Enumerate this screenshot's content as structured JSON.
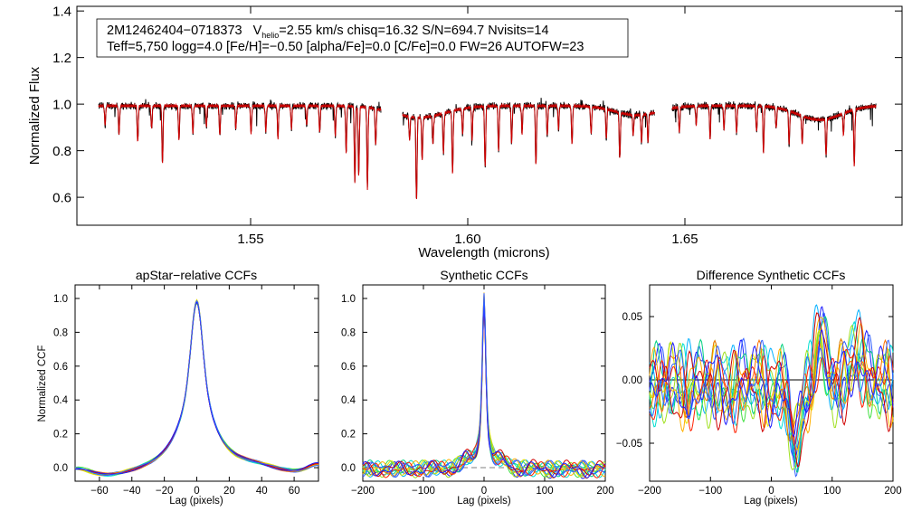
{
  "colors": {
    "observed": "#000000",
    "model": "#d00000",
    "zero_line": "#7f7f7f",
    "visit_palette": [
      "#1a1aff",
      "#3060ff",
      "#00b0ff",
      "#00e0d0",
      "#00d080",
      "#40e040",
      "#a0e020",
      "#e8e000",
      "#ffb000",
      "#ff7000",
      "#ff2000",
      "#d00000"
    ]
  },
  "chart_data": [
    {
      "type": "line",
      "id": "spectrum",
      "title": "",
      "info_line1": {
        "star": "2M12462404−0718373",
        "v_label": "V",
        "v_sub": "helio",
        "v_value": "=2.55 km/s  chisq=16.32  S/N=694.7  Nvisits=14"
      },
      "info_line2": "Teff=5,750 logg=4.0 [Fe/H]=−0.50 [alpha/Fe]=0.0 [C/Fe]=0.0 FW=26 AUTOFW=23",
      "xlabel": "Wavelength (microns)",
      "ylabel": "Normalized Flux",
      "xlim": [
        1.51,
        1.7
      ],
      "ylim": [
        0.48,
        1.42
      ],
      "xticks": [
        "1.55",
        "1.60",
        "1.65"
      ],
      "xtick_values": [
        1.55,
        1.6,
        1.65
      ],
      "yticks": [
        "0.6",
        "0.8",
        "1.0",
        "1.2",
        "1.4"
      ],
      "ytick_values": [
        0.6,
        0.8,
        1.0,
        1.2,
        1.4
      ],
      "segments": [
        [
          1.515,
          1.58
        ],
        [
          1.585,
          1.643
        ],
        [
          1.647,
          1.694
        ]
      ],
      "series": [
        {
          "name": "observed",
          "color": "#000000"
        },
        {
          "name": "model",
          "color": "#d00000"
        }
      ],
      "absorption_lines": [
        [
          1.5165,
          0.08
        ],
        [
          1.5197,
          0.12
        ],
        [
          1.524,
          0.16
        ],
        [
          1.5272,
          0.1
        ],
        [
          1.5297,
          0.25
        ],
        [
          1.5335,
          0.15
        ],
        [
          1.5367,
          0.12
        ],
        [
          1.5398,
          0.09
        ],
        [
          1.5429,
          0.13
        ],
        [
          1.5466,
          0.1
        ],
        [
          1.5501,
          0.12
        ],
        [
          1.5535,
          0.11
        ],
        [
          1.5563,
          0.14
        ],
        [
          1.5594,
          0.1
        ],
        [
          1.5629,
          0.08
        ],
        [
          1.5659,
          0.12
        ],
        [
          1.5695,
          0.13
        ],
        [
          1.572,
          0.2
        ],
        [
          1.574,
          0.33
        ],
        [
          1.5749,
          0.3
        ],
        [
          1.5769,
          0.35
        ],
        [
          1.5788,
          0.16
        ],
        [
          1.5866,
          0.1
        ],
        [
          1.5882,
          0.36
        ],
        [
          1.5895,
          0.18
        ],
        [
          1.592,
          0.12
        ],
        [
          1.5944,
          0.17
        ],
        [
          1.5965,
          0.27
        ],
        [
          1.5988,
          0.11
        ],
        [
          1.601,
          0.14
        ],
        [
          1.604,
          0.26
        ],
        [
          1.6071,
          0.2
        ],
        [
          1.6101,
          0.16
        ],
        [
          1.6125,
          0.12
        ],
        [
          1.6157,
          0.25
        ],
        [
          1.6183,
          0.13
        ],
        [
          1.6209,
          0.1
        ],
        [
          1.624,
          0.16
        ],
        [
          1.6284,
          0.12
        ],
        [
          1.6319,
          0.13
        ],
        [
          1.635,
          0.2
        ],
        [
          1.6381,
          0.09
        ],
        [
          1.64,
          0.12
        ],
        [
          1.6415,
          0.12
        ],
        [
          1.6487,
          0.11
        ],
        [
          1.6526,
          0.08
        ],
        [
          1.6558,
          0.14
        ],
        [
          1.659,
          0.1
        ],
        [
          1.6619,
          0.12
        ],
        [
          1.6665,
          0.11
        ],
        [
          1.6681,
          0.2
        ],
        [
          1.671,
          0.09
        ],
        [
          1.674,
          0.14
        ],
        [
          1.677,
          0.12
        ],
        [
          1.6825,
          0.16
        ],
        [
          1.6865,
          0.09
        ],
        [
          1.689,
          0.24
        ]
      ],
      "broad_features": [
        [
          1.5888,
          0.05,
          0.006
        ],
        [
          1.639,
          0.04,
          0.005
        ],
        [
          1.681,
          0.06,
          0.005
        ]
      ]
    },
    {
      "type": "line",
      "id": "apstar_ccf",
      "title": "apStar−relative CCFs",
      "xlabel": "Lag (pixels)",
      "ylabel": "Normalized CCF",
      "xlim": [
        -75,
        75
      ],
      "ylim": [
        -0.08,
        1.08
      ],
      "xticks": [
        "−60",
        "−40",
        "−20",
        "0",
        "20",
        "40",
        "60"
      ],
      "xtick_values": [
        -60,
        -40,
        -20,
        0,
        20,
        40,
        60
      ],
      "yticks": [
        "0.0",
        "0.2",
        "0.4",
        "0.6",
        "0.8",
        "1.0"
      ],
      "ytick_values": [
        0.0,
        0.2,
        0.4,
        0.6,
        0.8,
        1.0
      ],
      "n_series": 14,
      "zero_line": false
    },
    {
      "type": "line",
      "id": "synthetic_ccf",
      "title": "Synthetic CCFs",
      "xlabel": "Lag (pixels)",
      "ylabel": "",
      "xlim": [
        -200,
        200
      ],
      "ylim": [
        -0.08,
        1.08
      ],
      "xticks": [
        "−200",
        "−100",
        "0",
        "100",
        "200"
      ],
      "xtick_values": [
        -200,
        -100,
        0,
        100,
        200
      ],
      "yticks": [
        "0.0",
        "0.2",
        "0.4",
        "0.6",
        "0.8",
        "1.0"
      ],
      "ytick_values": [
        0.0,
        0.2,
        0.4,
        0.6,
        0.8,
        1.0
      ],
      "n_series": 14,
      "zero_line": true
    },
    {
      "type": "line",
      "id": "diff_ccf",
      "title": "Difference Synthetic CCFs",
      "xlabel": "Lag (pixels)",
      "ylabel": "",
      "xlim": [
        -200,
        200
      ],
      "ylim": [
        -0.08,
        0.075
      ],
      "xticks": [
        "−200",
        "−100",
        "0",
        "100",
        "200"
      ],
      "xtick_values": [
        -200,
        -100,
        0,
        100,
        200
      ],
      "yticks": [
        "−0.05",
        "0.00",
        "0.05"
      ],
      "ytick_values": [
        -0.05,
        0.0,
        0.05
      ],
      "n_series": 14,
      "zero_line": true
    }
  ]
}
